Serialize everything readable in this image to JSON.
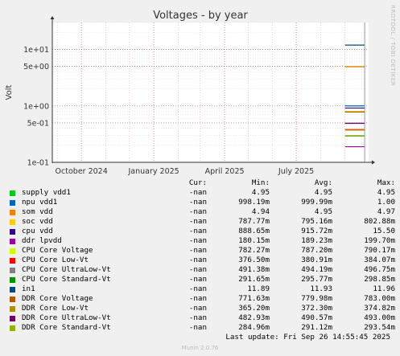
{
  "chart_data": {
    "type": "line",
    "title": "Voltages - by year",
    "ylabel": "Volt",
    "y_scale": "log",
    "ylim": [
      0.1,
      30
    ],
    "y_ticks": [
      {
        "value": 10,
        "label": "1e+01"
      },
      {
        "value": 5,
        "label": "5e+00"
      },
      {
        "value": 1,
        "label": "1e+00"
      },
      {
        "value": 0.5,
        "label": "5e-01"
      },
      {
        "value": 0.1,
        "label": "1e-01"
      }
    ],
    "xlim": [
      "2024-08-25",
      "2025-10-01"
    ],
    "x_ticks": [
      {
        "date": "2024-10-01",
        "label": "October 2024"
      },
      {
        "date": "2025-01-01",
        "label": "January 2025"
      },
      {
        "date": "2025-04-01",
        "label": "April 2025"
      },
      {
        "date": "2025-07-01",
        "label": "July 2025"
      }
    ],
    "data_start": "2025-09-01",
    "data_end": "2025-09-26",
    "grid": true,
    "watermark": "RRDTOOL / TOBI OETIKER",
    "columns": [
      "Cur:",
      "Min:",
      "Avg:",
      "Max:"
    ],
    "series": [
      {
        "name": "supply vdd1",
        "color": "#00cc00",
        "cur": "-nan",
        "min": "4.95",
        "avg": "4.95",
        "max": "4.95",
        "value": 4.95
      },
      {
        "name": "npu vdd1",
        "color": "#0066b3",
        "cur": "-nan",
        "min": "998.19m",
        "avg": "999.99m",
        "max": "1.00",
        "value": 0.99999
      },
      {
        "name": "som vdd",
        "color": "#ff8000",
        "cur": "-nan",
        "min": "4.94",
        "avg": "4.95",
        "max": "4.97",
        "value": 4.95
      },
      {
        "name": "soc vdd",
        "color": "#ffcc00",
        "cur": "-nan",
        "min": "787.77m",
        "avg": "795.16m",
        "max": "802.88m",
        "value": 0.79516
      },
      {
        "name": "cpu vdd",
        "color": "#330099",
        "cur": "-nan",
        "min": "888.65m",
        "avg": "915.72m",
        "max": "15.50",
        "value": 0.91572
      },
      {
        "name": "ddr lpvdd",
        "color": "#990099",
        "cur": "-nan",
        "min": "180.15m",
        "avg": "189.23m",
        "max": "199.70m",
        "value": 0.18923
      },
      {
        "name": "CPU Core Voltage",
        "color": "#ccff00",
        "cur": "-nan",
        "min": "782.27m",
        "avg": "787.20m",
        "max": "790.17m",
        "value": 0.7872
      },
      {
        "name": "CPU Core Low-Vt",
        "color": "#ff0000",
        "cur": "-nan",
        "min": "376.50m",
        "avg": "380.91m",
        "max": "384.07m",
        "value": 0.38091
      },
      {
        "name": "CPU Core UltraLow-Vt",
        "color": "#808080",
        "cur": "-nan",
        "min": "491.38m",
        "avg": "494.19m",
        "max": "496.75m",
        "value": 0.49419
      },
      {
        "name": "CPU Core Standard-Vt",
        "color": "#008f00",
        "cur": "-nan",
        "min": "291.65m",
        "avg": "295.77m",
        "max": "298.85m",
        "value": 0.29577
      },
      {
        "name": "in1",
        "color": "#00487d",
        "cur": "-nan",
        "min": "11.89",
        "avg": "11.93",
        "max": "11.96",
        "value": 11.93
      },
      {
        "name": "DDR Core Voltage",
        "color": "#b35a00",
        "cur": "-nan",
        "min": "771.63m",
        "avg": "779.98m",
        "max": "783.00m",
        "value": 0.77998
      },
      {
        "name": "DDR Core Low-Vt",
        "color": "#b38f00",
        "cur": "-nan",
        "min": "365.20m",
        "avg": "372.30m",
        "max": "374.82m",
        "value": 0.3723
      },
      {
        "name": "DDR Core UltraLow-Vt",
        "color": "#6b006b",
        "cur": "-nan",
        "min": "482.93m",
        "avg": "490.57m",
        "max": "493.00m",
        "value": 0.49057
      },
      {
        "name": "DDR Core Standard-Vt",
        "color": "#8fb300",
        "cur": "-nan",
        "min": "284.96m",
        "avg": "291.12m",
        "max": "293.54m",
        "value": 0.29112
      }
    ]
  },
  "footer": {
    "last_update": "Last update: Fri Sep 26 14:55:45 2025",
    "version": "Munin 2.0.76"
  }
}
